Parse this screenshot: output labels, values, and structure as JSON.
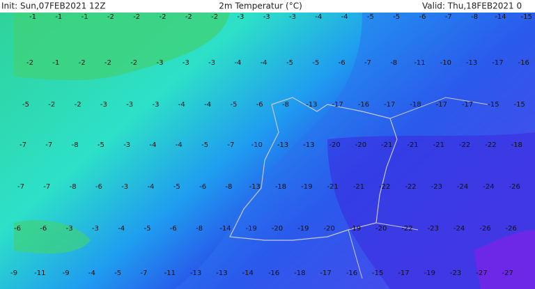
{
  "header": {
    "init": "Init: Sun,07FEB2021 12Z",
    "title": "2m Temperatur (°C)",
    "valid": "Valid: Thu,18FEB2021 0"
  },
  "map": {
    "rows": [
      [
        -1,
        -1,
        -1,
        -2,
        -2,
        -2,
        -2,
        -2,
        -3,
        -3,
        -3,
        -4,
        -4,
        -5,
        -5,
        -6,
        -7,
        -8,
        -14,
        -15
      ],
      [
        -2,
        -1,
        -2,
        -2,
        -2,
        -3,
        -3,
        -3,
        -4,
        -4,
        -5,
        -5,
        -6,
        -7,
        -8,
        -11,
        -10,
        -13,
        -17,
        -16
      ],
      [
        -5,
        -2,
        -2,
        -3,
        -3,
        -3,
        -4,
        -4,
        -5,
        -6,
        -8,
        -13,
        -17,
        -16,
        -17,
        -18,
        -17,
        -17,
        -15,
        -15
      ],
      [
        -7,
        -7,
        -8,
        -5,
        -3,
        -4,
        -4,
        -5,
        -7,
        -10,
        -13,
        -13,
        -20,
        -20,
        -21,
        -21,
        -21,
        -22,
        -22,
        -18
      ],
      [
        -7,
        -7,
        -8,
        -6,
        -3,
        -4,
        -5,
        -6,
        -8,
        -13,
        -18,
        -19,
        -21,
        -21,
        -22,
        -22,
        -23,
        -24,
        -24,
        -26
      ],
      [
        -6,
        -6,
        -3,
        -3,
        -4,
        -5,
        -6,
        -8,
        -14,
        -19,
        -20,
        -19,
        -20,
        -19,
        -20,
        -22,
        -23,
        -24,
        -26,
        -26
      ],
      [
        -9,
        -11,
        -9,
        -4,
        -5,
        -7,
        -11,
        -13,
        -13,
        -14,
        -16,
        -18,
        -17,
        -16,
        -15,
        -17,
        -19,
        -23,
        -27,
        -27
      ]
    ]
  }
}
